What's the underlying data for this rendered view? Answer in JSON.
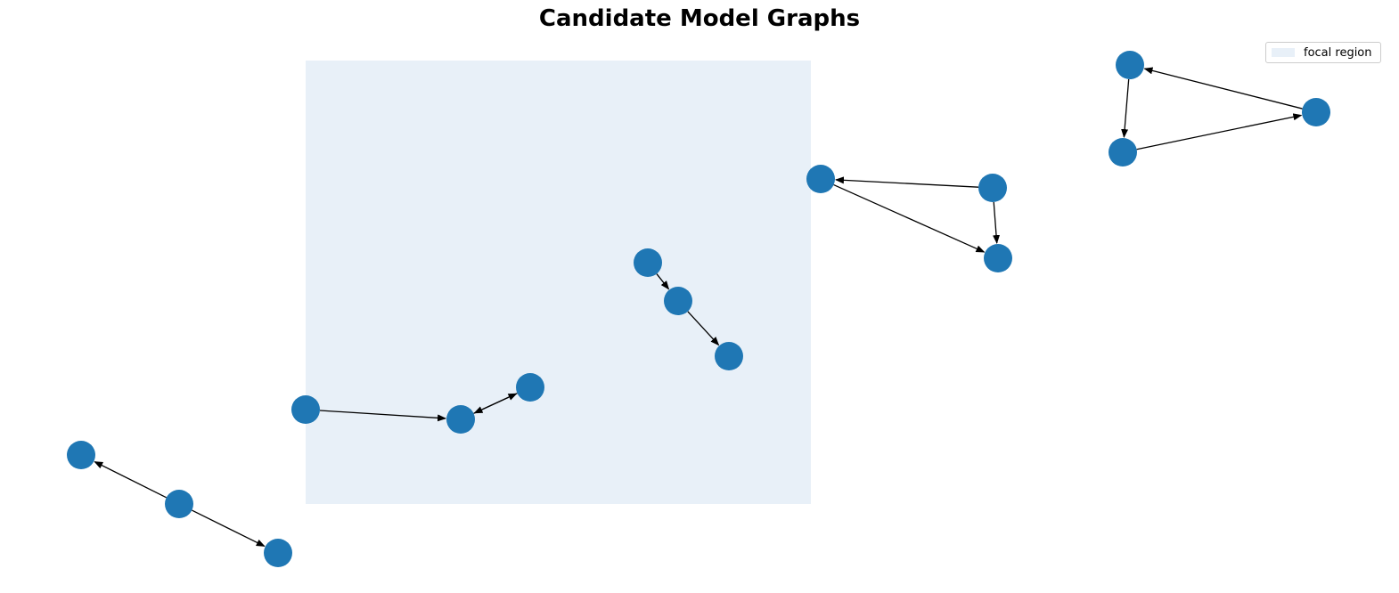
{
  "title": "Candidate Model Graphs",
  "legend": {
    "label": "focal region",
    "color": "#e8f0f8"
  },
  "colors": {
    "node": "#1f77b4",
    "edge": "#000000",
    "focal_region": "#e8f0f8"
  },
  "graphs": [
    {
      "id": "g1",
      "nodes": [
        "a",
        "b",
        "c"
      ],
      "edges": [
        {
          "from": "b",
          "to": "a"
        },
        {
          "from": "b",
          "to": "c"
        }
      ]
    },
    {
      "id": "g2",
      "nodes": [
        "a",
        "b",
        "c"
      ],
      "edges": [
        {
          "from": "a",
          "to": "b"
        },
        {
          "from": "b",
          "to": "c"
        },
        {
          "from": "c",
          "to": "b"
        }
      ]
    },
    {
      "id": "g3",
      "nodes": [
        "a",
        "b",
        "c"
      ],
      "edges": [
        {
          "from": "a",
          "to": "b"
        },
        {
          "from": "b",
          "to": "c"
        }
      ]
    },
    {
      "id": "g4",
      "nodes": [
        "a",
        "b",
        "c"
      ],
      "edges": [
        {
          "from": "b",
          "to": "a"
        },
        {
          "from": "a",
          "to": "c"
        },
        {
          "from": "b",
          "to": "c"
        }
      ]
    },
    {
      "id": "g5",
      "nodes": [
        "a",
        "b",
        "c"
      ],
      "edges": [
        {
          "from": "c",
          "to": "a"
        },
        {
          "from": "a",
          "to": "b"
        },
        {
          "from": "b",
          "to": "c"
        }
      ]
    }
  ]
}
